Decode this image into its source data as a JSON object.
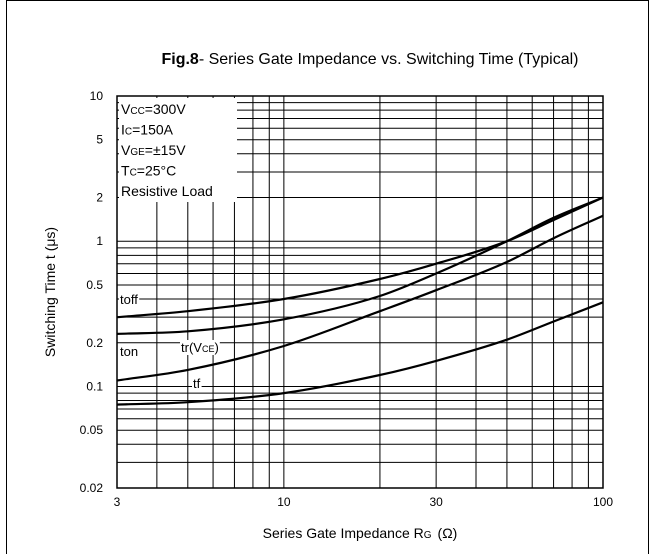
{
  "chart_data": {
    "type": "line",
    "title_bold": "Fig.8",
    "title_rest": "- Series Gate Impedance vs. Switching Time  (Typical)",
    "xlabel_main": "Series Gate Impedance R",
    "xlabel_sub": "G",
    "xlabel_unit": "(Ω)",
    "ylabel": "Switching Time t  (μs)",
    "x_scale": "log",
    "y_scale": "log",
    "xlim": [
      3,
      100
    ],
    "ylim": [
      0.02,
      10
    ],
    "grid": true,
    "x_ticks": [
      {
        "value": 3,
        "label": "3"
      },
      {
        "value": 10,
        "label": "10"
      },
      {
        "value": 30,
        "label": "30"
      },
      {
        "value": 100,
        "label": "100"
      }
    ],
    "y_ticks": [
      {
        "value": 0.02,
        "label": "0.02"
      },
      {
        "value": 0.05,
        "label": "0.05"
      },
      {
        "value": 0.1,
        "label": "0.1"
      },
      {
        "value": 0.2,
        "label": "0.2"
      },
      {
        "value": 0.5,
        "label": "0.5"
      },
      {
        "value": 1,
        "label": "1"
      },
      {
        "value": 2,
        "label": "2"
      },
      {
        "value": 5,
        "label": "5"
      },
      {
        "value": 10,
        "label": "10"
      }
    ],
    "conditions": [
      {
        "main": "V",
        "sub": "CC",
        "rest": "=300V"
      },
      {
        "main": "I",
        "sub": "C",
        "rest": "=150A"
      },
      {
        "main": "V",
        "sub": "GE",
        "rest": "=±15V"
      },
      {
        "main": "T",
        "sub": "C",
        "rest": "=25°C"
      },
      {
        "main": "Resistive Load",
        "sub": "",
        "rest": ""
      }
    ],
    "series": [
      {
        "name": "toff",
        "x": [
          3,
          5,
          10,
          20,
          30,
          50,
          70,
          100
        ],
        "y": [
          0.3,
          0.33,
          0.4,
          0.55,
          0.7,
          1.0,
          1.4,
          2.0
        ]
      },
      {
        "name": "ton",
        "x": [
          3,
          5,
          10,
          20,
          30,
          50,
          70,
          100
        ],
        "y": [
          0.23,
          0.24,
          0.29,
          0.42,
          0.6,
          1.0,
          1.45,
          2.0
        ]
      },
      {
        "name": "tr(VCE)",
        "label_main": "tr(V",
        "label_sub": "CE",
        "label_rest": ")",
        "x": [
          3,
          5,
          10,
          20,
          30,
          50,
          70,
          100
        ],
        "y": [
          0.11,
          0.13,
          0.19,
          0.33,
          0.46,
          0.72,
          1.05,
          1.5
        ]
      },
      {
        "name": "tf",
        "x": [
          3,
          5,
          10,
          20,
          30,
          50,
          70,
          100
        ],
        "y": [
          0.075,
          0.078,
          0.09,
          0.12,
          0.15,
          0.21,
          0.28,
          0.38
        ]
      }
    ]
  }
}
